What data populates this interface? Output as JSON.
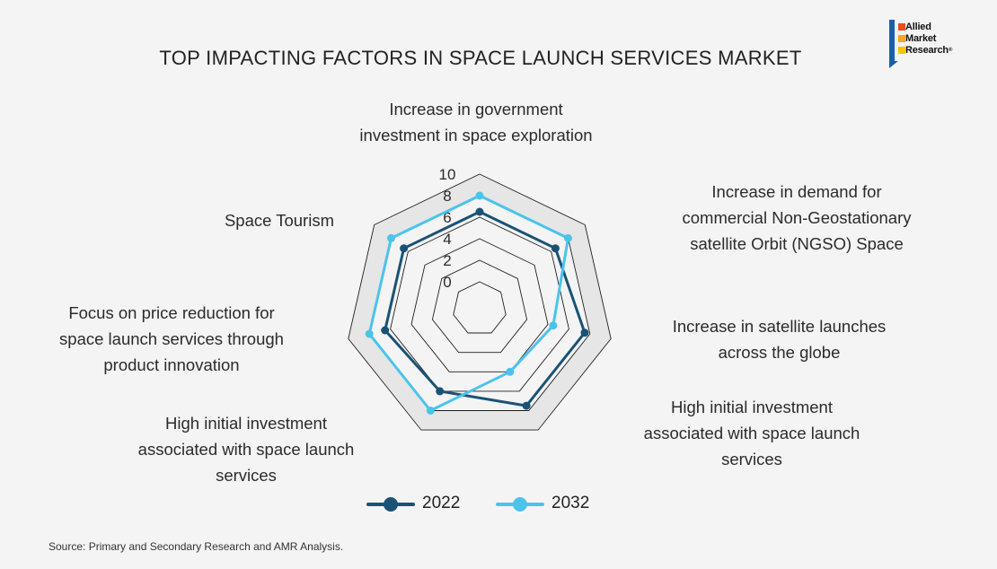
{
  "title": "TOP IMPACTING FACTORS IN SPACE LAUNCH SERVICES MARKET",
  "logo": {
    "line1": "Allied",
    "line2": "Market",
    "line3": "Research",
    "mark": "®"
  },
  "source": "Source: Primary and Secondary Research and AMR Analysis.",
  "chart_data": {
    "type": "radar",
    "title": "TOP IMPACTING FACTORS IN SPACE LAUNCH SERVICES MARKET",
    "axes": [
      "Increase in government investment in space exploration",
      "Increase in demand for commercial Non-Geostationary satellite Orbit (NGSO) Space",
      "Increase in satellite launches across the globe",
      "High initial investment associated with space launch services",
      "High initial investment associated with space launch services",
      "Focus on price reduction for space launch services through product innovation",
      "Space Tourism"
    ],
    "axis_label_lines": [
      [
        "Increase in government",
        "investment in space exploration"
      ],
      [
        "Increase in demand for",
        "commercial Non-Geostationary",
        "satellite Orbit (NGSO) Space"
      ],
      [
        "Increase in satellite launches",
        "across the globe"
      ],
      [
        "High initial investment",
        "associated with space launch",
        "services"
      ],
      [
        "High initial investment",
        "associated with space launch",
        "services"
      ],
      [
        "Focus on price reduction for",
        "space launch services through",
        "product innovation"
      ],
      [
        "Space Tourism"
      ]
    ],
    "rlim": [
      0,
      10
    ],
    "ticks": [
      "0",
      "2",
      "4",
      "6",
      "8",
      "10"
    ],
    "tick_values": [
      0,
      2,
      4,
      6,
      8,
      10
    ],
    "grid": true,
    "legend": "bottom",
    "series": [
      {
        "name": "2022",
        "color": "#1a5276",
        "values": [
          6.5,
          6.5,
          7.5,
          7.5,
          6.0,
          6.5,
          6.5
        ]
      },
      {
        "name": "2032",
        "color": "#4cc3ea",
        "values": [
          8.0,
          8.0,
          4.5,
          4.0,
          8.0,
          8.0,
          8.0
        ]
      }
    ]
  }
}
